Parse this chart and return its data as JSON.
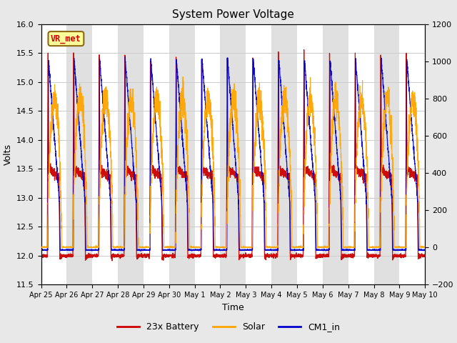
{
  "title": "System Power Voltage",
  "xlabel": "Time",
  "ylabel_left": "Volts",
  "ylim_left": [
    11.5,
    16.0
  ],
  "ylim_right": [
    -200,
    1200
  ],
  "legend_label": "VR_met",
  "series": [
    "23x Battery",
    "Solar",
    "CM1_in"
  ],
  "series_colors": [
    "#cc0000",
    "#ffa500",
    "#0000cc"
  ],
  "x_tick_labels": [
    "Apr 25",
    "Apr 26",
    "Apr 27",
    "Apr 28",
    "Apr 29",
    "Apr 30",
    "May 1",
    "May 2",
    "May 3",
    "May 4",
    "May 5",
    "May 6",
    "May 7",
    "May 8",
    "May 9",
    "May 10"
  ],
  "background_color": "#e8e8e8",
  "plot_bg_color": "#ffffff",
  "band_color": "#e0e0e0",
  "grid_color": "#cccccc",
  "title_fontsize": 11,
  "axis_fontsize": 9,
  "tick_fontsize": 8,
  "n_days": 15,
  "pts_per_day": 288
}
